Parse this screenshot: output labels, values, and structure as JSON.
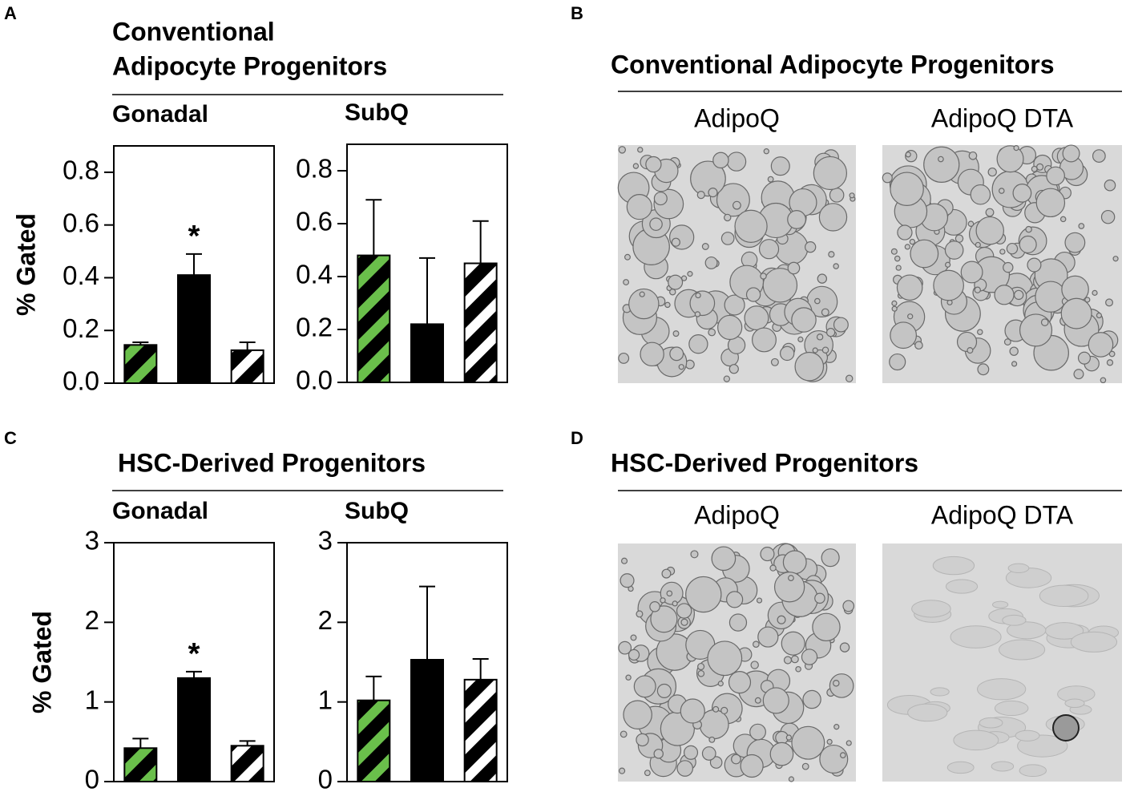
{
  "panels": [
    {
      "letter": "A",
      "title_lines": [
        "Conventional",
        "Adipocyte Progenitors"
      ]
    },
    {
      "letter": "B",
      "title_lines": [
        "Conventional Adipocyte Progenitors"
      ],
      "images": [
        "AdipoQ",
        "AdipoQ DTA"
      ]
    },
    {
      "letter": "C",
      "title_lines": [
        "HSC-Derived Progenitors"
      ]
    },
    {
      "letter": "D",
      "title_lines": [
        "HSC-Derived Progenitors"
      ],
      "images": [
        "AdipoQ",
        "AdipoQ DTA"
      ]
    }
  ],
  "chart_data": [
    {
      "type": "bar",
      "title": "Gonadal",
      "ylabel": "% Gated",
      "categories": [
        null,
        null,
        null
      ],
      "values": [
        0.145,
        0.41,
        0.125
      ],
      "errors": [
        0.01,
        0.08,
        0.03
      ],
      "annotation_labels": [
        null,
        "*",
        null
      ],
      "colors": [
        "#6abf4b",
        "#000000",
        "#ffffff"
      ],
      "hatch": [
        true,
        false,
        true
      ],
      "ylim": [
        0,
        0.9
      ],
      "yticks": [
        {
          "value": 0,
          "label": "0.0"
        },
        0.2,
        0.4,
        0.6,
        0.8
      ]
    },
    {
      "type": "bar",
      "title": "SubQ",
      "categories": [
        null,
        null,
        null
      ],
      "values": [
        0.48,
        0.22,
        0.45
      ],
      "errors": [
        0.21,
        0.25,
        0.16
      ],
      "colors": [
        "#6abf4b",
        "#000000",
        "#ffffff"
      ],
      "hatch": [
        true,
        false,
        true
      ],
      "ylim": [
        0,
        0.9
      ],
      "yticks": [
        {
          "value": 0,
          "label": "0.0"
        },
        0.2,
        0.4,
        0.6,
        0.8
      ]
    },
    {
      "type": "bar",
      "title": "Gonadal",
      "ylabel": "% Gated",
      "categories": [
        null,
        null,
        null
      ],
      "values": [
        0.42,
        1.3,
        0.45
      ],
      "errors": [
        0.12,
        0.08,
        0.06
      ],
      "annotation_labels": [
        null,
        "*",
        null
      ],
      "colors": [
        "#6abf4b",
        "#000000",
        "#ffffff"
      ],
      "hatch": [
        true,
        false,
        true
      ],
      "ylim": [
        0,
        3
      ],
      "yticks": [
        0,
        1,
        2,
        3
      ]
    },
    {
      "type": "bar",
      "title": "SubQ",
      "categories": [
        null,
        null,
        null
      ],
      "values": [
        1.02,
        1.53,
        1.28
      ],
      "errors": [
        0.3,
        0.92,
        0.26
      ],
      "colors": [
        "#6abf4b",
        "#000000",
        "#ffffff"
      ],
      "hatch": [
        true,
        false,
        true
      ],
      "ylim": [
        0,
        3
      ],
      "yticks": [
        0,
        1,
        2,
        3
      ]
    }
  ]
}
